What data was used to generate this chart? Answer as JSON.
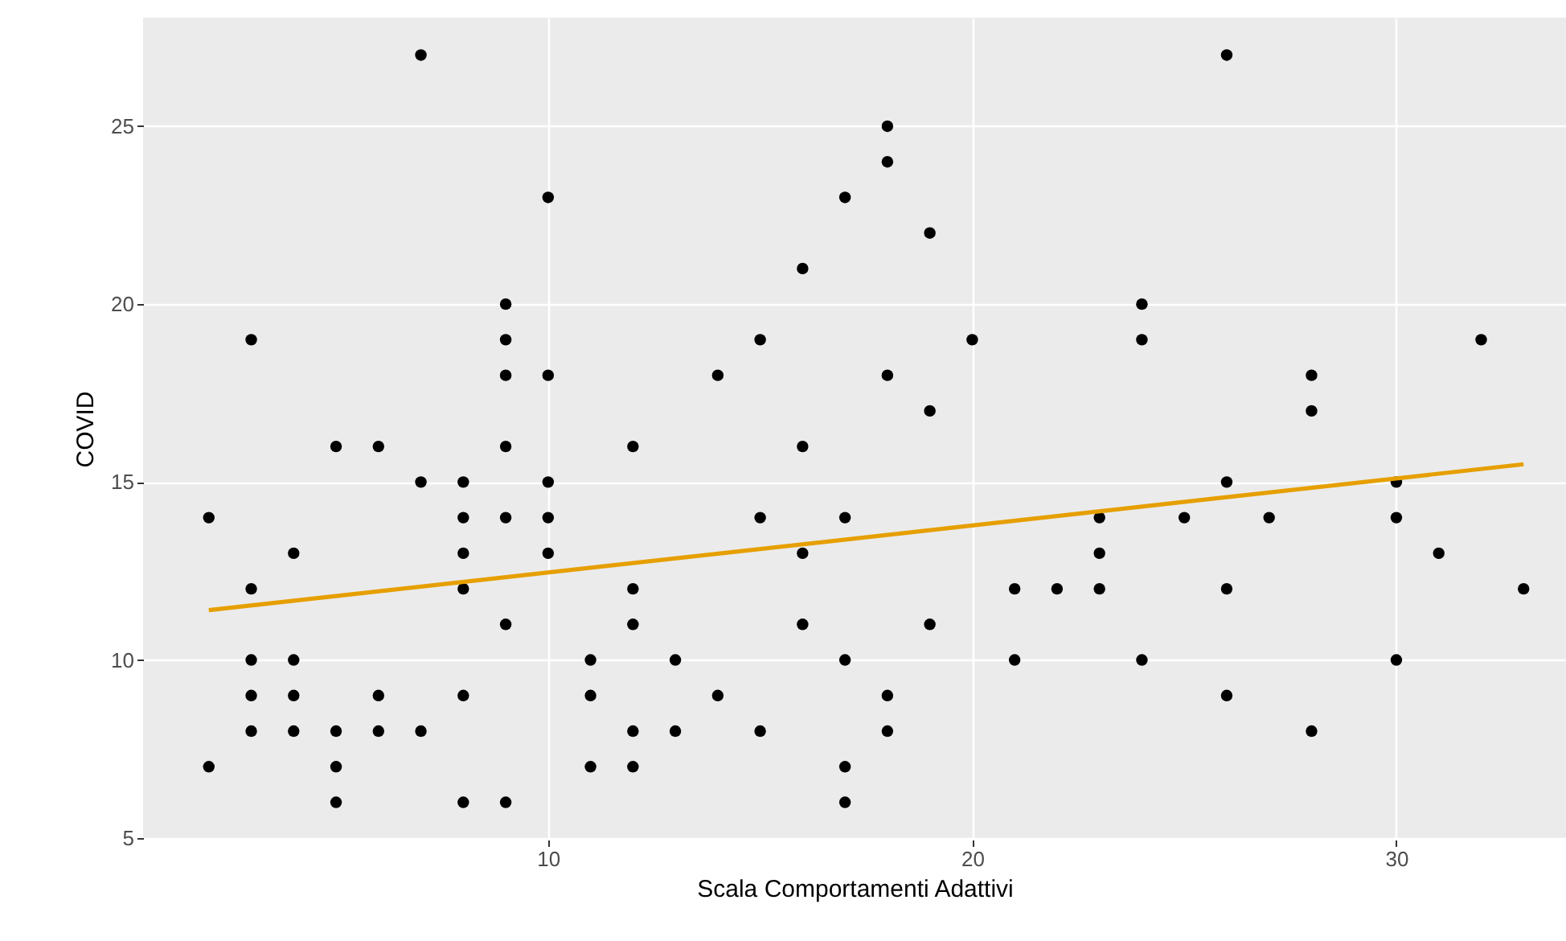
{
  "chart_data": {
    "type": "scatter",
    "xlabel": "Scala Comportamenti Adattivi",
    "ylabel": "COVID",
    "grid": true,
    "xlim": [
      0.45,
      34
    ],
    "ylim": [
      4.95,
      28.05
    ],
    "xticks": [
      10,
      20,
      30
    ],
    "yticks": [
      5,
      10,
      15,
      20,
      25
    ],
    "series": [
      {
        "marker": "circle",
        "color": "#000000",
        "x": [
          2,
          2,
          3,
          3,
          3,
          3,
          3,
          4,
          4,
          4,
          4,
          5,
          5,
          5,
          5,
          6,
          6,
          6,
          7,
          7,
          7,
          8,
          8,
          8,
          8,
          8,
          8,
          9,
          9,
          9,
          9,
          9,
          9,
          9,
          10,
          10,
          10,
          10,
          10,
          11,
          11,
          11,
          12,
          12,
          12,
          12,
          12,
          13,
          13,
          14,
          14,
          15,
          15,
          15,
          16,
          16,
          16,
          16,
          17,
          17,
          17,
          17,
          17,
          18,
          18,
          18,
          18,
          18,
          19,
          19,
          19,
          20,
          21,
          21,
          22,
          23,
          23,
          23,
          24,
          24,
          24,
          25,
          26,
          26,
          26,
          26,
          27,
          28,
          28,
          28,
          30,
          30,
          30,
          31,
          32,
          33
        ],
        "values": [
          14,
          7,
          19,
          12,
          10,
          9,
          8,
          13,
          10,
          9,
          8,
          16,
          8,
          7,
          6,
          16,
          9,
          8,
          27,
          15,
          8,
          15,
          14,
          13,
          12,
          9,
          6,
          20,
          19,
          18,
          16,
          14,
          11,
          6,
          23,
          18,
          15,
          14,
          13,
          10,
          9,
          7,
          16,
          12,
          11,
          8,
          7,
          10,
          8,
          18,
          9,
          19,
          14,
          8,
          21,
          16,
          13,
          11,
          23,
          14,
          10,
          7,
          6,
          25,
          24,
          18,
          9,
          8,
          22,
          17,
          11,
          19,
          12,
          10,
          12,
          14,
          13,
          12,
          20,
          19,
          10,
          14,
          27,
          15,
          12,
          9,
          14,
          18,
          17,
          8,
          15,
          14,
          10,
          13,
          19,
          12
        ]
      },
      {
        "type": "line",
        "marker": "none",
        "color": "#e69f00",
        "x": [
          2,
          33
        ],
        "values": [
          11.4,
          15.5
        ]
      }
    ]
  }
}
